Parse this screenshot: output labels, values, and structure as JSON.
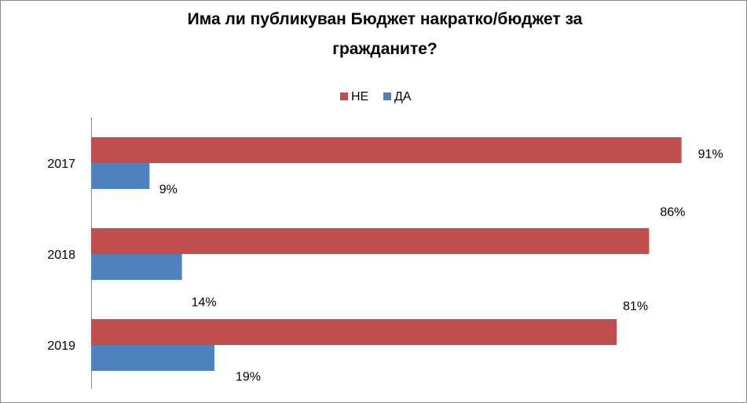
{
  "chart_data": {
    "type": "hbar",
    "title": "Има ли публикуван Бюджет накратко/бюджет за гражданите?",
    "categories": [
      "2017",
      "2018",
      "2019"
    ],
    "series": [
      {
        "name": "НЕ",
        "color": "#c0504d",
        "values": [
          91,
          86,
          81
        ],
        "value_labels": [
          "91%",
          "86%",
          "81%"
        ]
      },
      {
        "name": "ДА",
        "color": "#4f81bd",
        "values": [
          9,
          14,
          19
        ],
        "value_labels": [
          "9%",
          "14%",
          "19%"
        ]
      }
    ],
    "xlim": [
      0,
      100
    ],
    "legend": "top"
  }
}
